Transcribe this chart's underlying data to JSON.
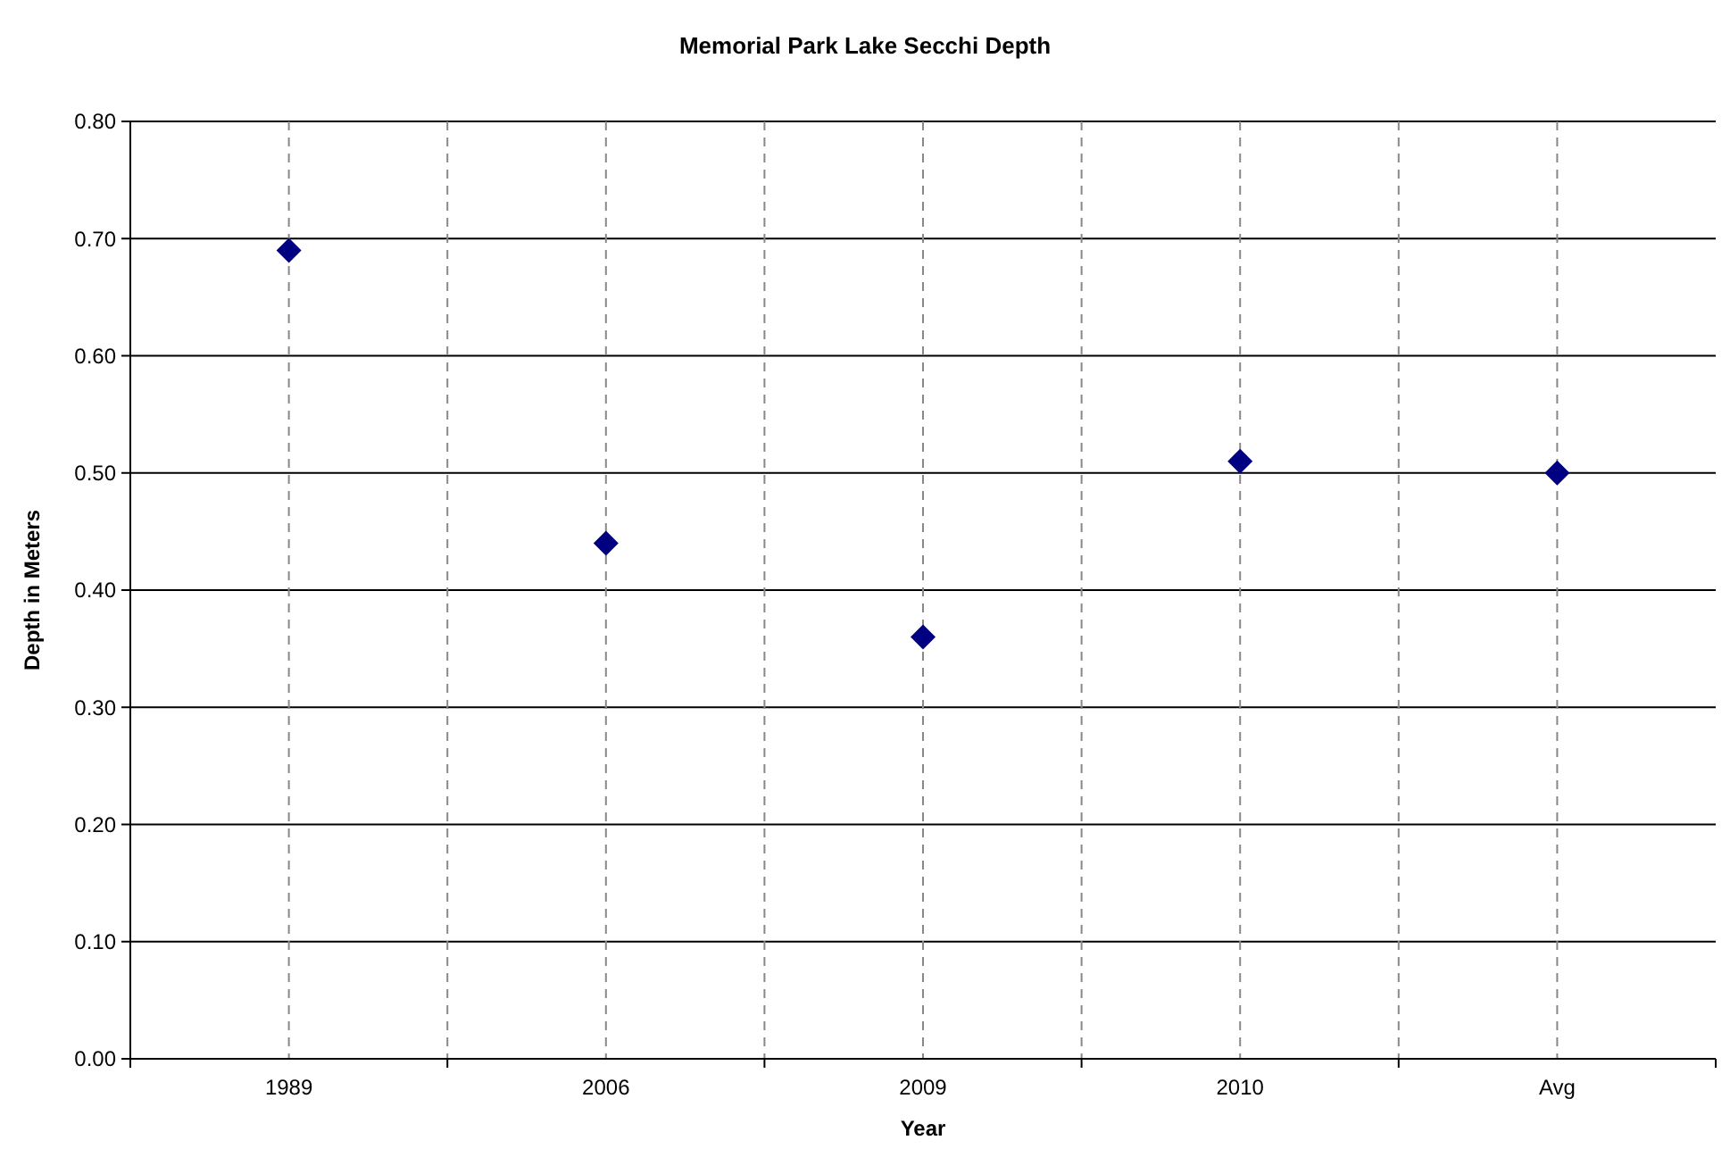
{
  "chart_data": {
    "type": "scatter",
    "title": "Memorial Park Lake Secchi Depth",
    "xlabel": "Year",
    "ylabel": "Depth in Meters",
    "categories": [
      "1989",
      "2006",
      "2009",
      "2010",
      "Avg"
    ],
    "series": [
      {
        "color": "#000080",
        "values": [
          0.69,
          0.44,
          0.36,
          0.51,
          0.5
        ]
      }
    ],
    "ylim": [
      0,
      0.8
    ],
    "yticks": [
      {
        "value": 0,
        "label": "0.00"
      },
      {
        "value": 0.1,
        "label": "0.10"
      },
      {
        "value": 0.2,
        "label": "0.20"
      },
      {
        "value": 0.3,
        "label": "0.30"
      },
      {
        "value": 0.4,
        "label": "0.40"
      },
      {
        "value": 0.5,
        "label": "0.50"
      },
      {
        "value": 0.6,
        "label": "0.60"
      },
      {
        "value": 0.7,
        "label": "0.70"
      },
      {
        "value": 0.8,
        "label": "0.80"
      }
    ],
    "grid": true,
    "marker": "diamond"
  }
}
